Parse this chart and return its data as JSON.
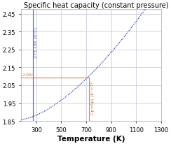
{
  "title": "Specific heat capacity (constant pressure) (kJ/kg/K)",
  "xlabel": "Temperature (K)",
  "xlim": [
    175,
    1300
  ],
  "ylim": [
    1.85,
    2.475
  ],
  "xticks": [
    300,
    500,
    700,
    900,
    1100,
    1300
  ],
  "yticks": [
    1.85,
    1.95,
    2.05,
    2.15,
    2.25,
    2.35,
    2.45
  ],
  "vline_blue_x": 273.15,
  "vline_blue_color": "#4466cc",
  "vline_blue_label": "273.15K (0°C)",
  "hline_y": 2.094,
  "hline_color": "#cc7744",
  "hline_label": "2.094",
  "vline_orange_x": 721.13,
  "vline_orange_color": "#cc7744",
  "vline_orange_label": "Cp=6p( )K°=T²",
  "curve_color": "#2233aa",
  "bg_color": "#ffffff",
  "grid_color": "#ccccdd",
  "title_fontsize": 7.0,
  "axis_fontsize": 7.5,
  "tick_fontsize": 6.0,
  "cp_T0": 175,
  "cp_T1": 1300,
  "cp_val_T175": 1.858,
  "cp_val_T1300": 2.47
}
